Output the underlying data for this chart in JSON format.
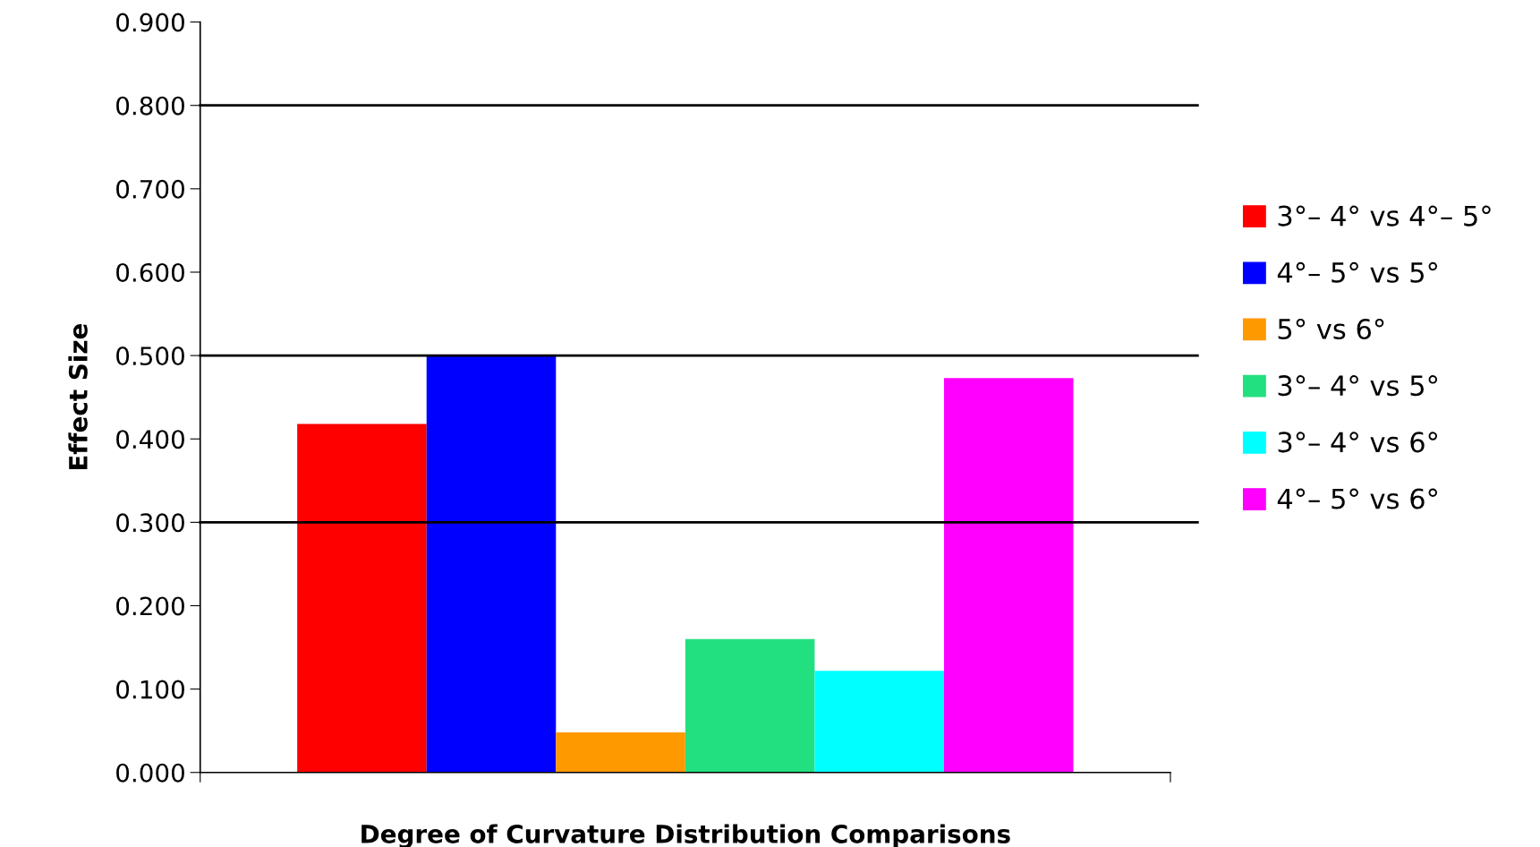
{
  "chart_data": {
    "type": "bar",
    "xlabel": "Degree of Curvature Distribution Comparisons",
    "ylabel": "Effect Size",
    "categories": [
      null
    ],
    "series": [
      {
        "name": "3°– 4° vs 4°– 5°",
        "color": "#ff0000",
        "values": [
          0.418
        ]
      },
      {
        "name": "4°– 5° vs 5°",
        "color": "#0000ff",
        "values": [
          0.499
        ]
      },
      {
        "name": "5° vs 6°",
        "color": "#ff9900",
        "values": [
          0.048
        ]
      },
      {
        "name": "3°– 4° vs 5°",
        "color": "#22e07f",
        "values": [
          0.16
        ]
      },
      {
        "name": "3°– 4° vs 6°",
        "color": "#00ffff",
        "values": [
          0.122
        ]
      },
      {
        "name": "4°– 5° vs 6°",
        "color": "#ff00ff",
        "values": [
          0.473
        ]
      }
    ],
    "ylim": [
      0,
      0.9
    ],
    "yticks": [
      {
        "value": 0,
        "label": "0.000"
      },
      {
        "value": 0.1,
        "label": "0.100"
      },
      {
        "value": 0.2,
        "label": "0.200"
      },
      {
        "value": 0.3,
        "label": "0.300"
      },
      {
        "value": 0.4,
        "label": "0.400"
      },
      {
        "value": 0.5,
        "label": "0.500"
      },
      {
        "value": 0.6,
        "label": "0.600"
      },
      {
        "value": 0.7,
        "label": "0.700"
      },
      {
        "value": 0.8,
        "label": "0.800"
      },
      {
        "value": 0.9,
        "label": "0.900"
      }
    ],
    "ref_lines": [
      {
        "axis": "y",
        "value": 0.3,
        "color": "#000000"
      },
      {
        "axis": "y",
        "value": 0.5,
        "color": "#000000"
      },
      {
        "axis": "y",
        "value": 0.8,
        "color": "#000000"
      }
    ],
    "legend": "right",
    "grid": false
  }
}
